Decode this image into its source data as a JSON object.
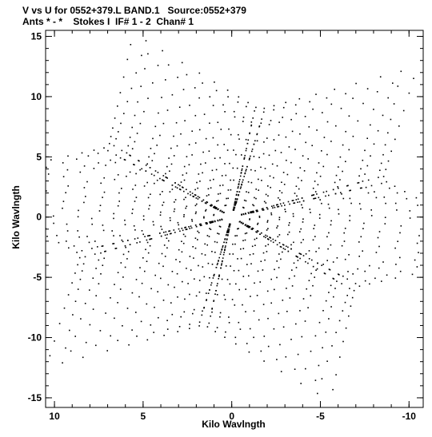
{
  "chart_data": {
    "type": "scatter",
    "title": "V vs U for 0552+379.L BAND.1   Source:0552+379",
    "subtitle": "Ants * - *    Stokes I  IF# 1 - 2  Chan# 1",
    "xlabel": "Kilo Wavlngth",
    "ylabel": "Kilo Wavlngth",
    "xlim": [
      10.5,
      -10.8
    ],
    "ylim": [
      -15.8,
      15.5
    ],
    "x_ticks": [
      10,
      5,
      0,
      -5,
      -10
    ],
    "y_ticks": [
      15,
      10,
      5,
      0,
      -5,
      -10,
      -15
    ],
    "x_tick_labels": [
      "10",
      "5",
      "0",
      "-5",
      "-10"
    ],
    "y_tick_labels": [
      "15",
      "10",
      "5",
      "0",
      "-5",
      "-10",
      "-15"
    ],
    "grid": false,
    "pattern": "hexagram uv-coverage with Hermitian symmetry",
    "arm_directions_deg": [
      0,
      60,
      120
    ],
    "long_arm_length": 15.0,
    "arm_orientation_offset_deg": 70,
    "series": [
      {
        "color": "#000000",
        "point_count": 780
      }
    ]
  }
}
